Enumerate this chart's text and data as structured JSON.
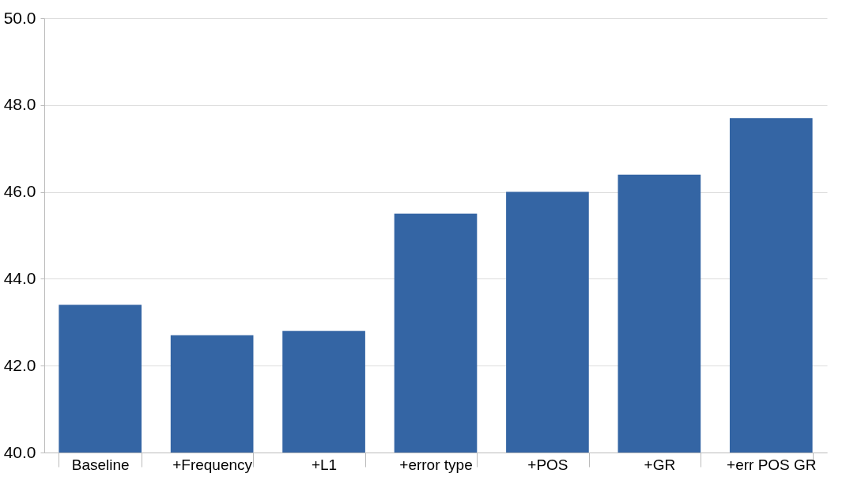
{
  "chart_data": {
    "type": "bar",
    "categories": [
      "Baseline",
      "+Frequency",
      "+L1",
      "+error type",
      "+POS",
      "+GR",
      "+err POS GR"
    ],
    "values": [
      43.4,
      42.7,
      42.8,
      45.5,
      46.0,
      46.4,
      47.7
    ],
    "color": "#3465a4",
    "ylim": [
      40,
      50
    ],
    "yticks": [
      {
        "value": 40,
        "label": "40.0"
      },
      {
        "value": 42,
        "label": "42.0"
      },
      {
        "value": 44,
        "label": "44.0"
      },
      {
        "value": 46,
        "label": "46.0"
      },
      {
        "value": 48,
        "label": "48.0"
      },
      {
        "value": 50,
        "label": "50.0"
      }
    ],
    "grid": "y"
  }
}
